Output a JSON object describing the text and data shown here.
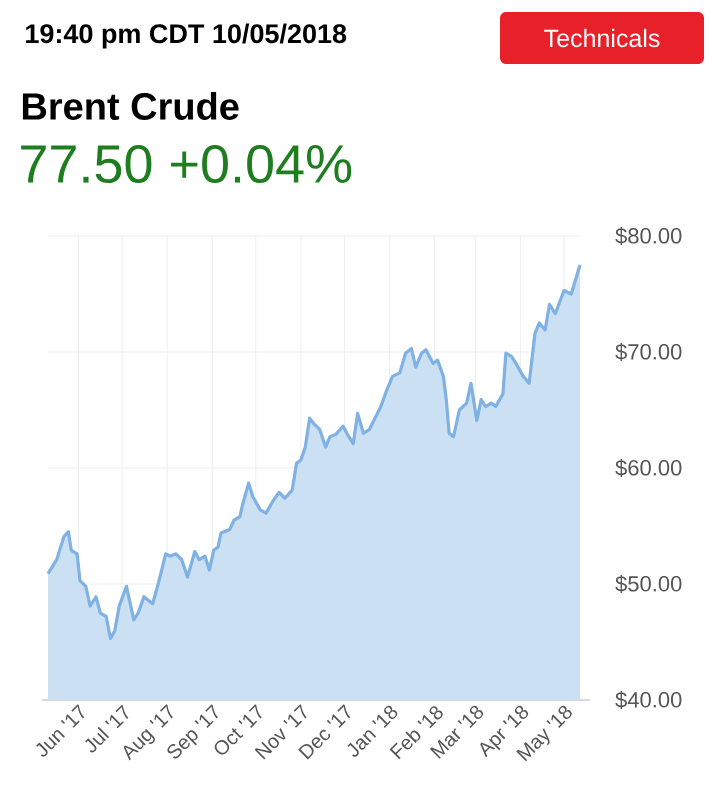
{
  "chart_data": {
    "type": "area",
    "title": "Brent Crude",
    "subtitle": "77.50 +0.04%",
    "annotations": [
      "19:40 pm CDT 10/05/2018",
      "Technicals"
    ],
    "xlim": [
      "2017-05-11",
      "2018-05-12"
    ],
    "xticks": [
      {
        "value": "2017-06-01",
        "label": "Jun '17"
      },
      {
        "value": "2017-07-01",
        "label": "Jul '17"
      },
      {
        "value": "2017-08-01",
        "label": "Aug '17"
      },
      {
        "value": "2017-09-01",
        "label": "Sep '17"
      },
      {
        "value": "2017-10-01",
        "label": "Oct '17"
      },
      {
        "value": "2017-11-01",
        "label": "Nov '17"
      },
      {
        "value": "2017-12-01",
        "label": "Dec '17"
      },
      {
        "value": "2018-01-01",
        "label": "Jan '18"
      },
      {
        "value": "2018-02-01",
        "label": "Feb '18"
      },
      {
        "value": "2018-03-01",
        "label": "Mar '18"
      },
      {
        "value": "2018-04-01",
        "label": "Apr '18"
      },
      {
        "value": "2018-05-01",
        "label": "May '18"
      }
    ],
    "ylim": [
      40,
      80
    ],
    "yticks": [
      {
        "value": 40,
        "label": "$40.00"
      },
      {
        "value": 50,
        "label": "$50.00"
      },
      {
        "value": 60,
        "label": "$60.00"
      },
      {
        "value": 70,
        "label": "$70.00"
      },
      {
        "value": 80,
        "label": "$80.00"
      }
    ],
    "grid": true,
    "series": [
      {
        "color": "#7fb1e3",
        "x": [
          "2017-05-11",
          "2017-05-17",
          "2017-05-22",
          "2017-05-25",
          "2017-05-27",
          "2017-05-31",
          "2017-06-02",
          "2017-06-06",
          "2017-06-09",
          "2017-06-13",
          "2017-06-16",
          "2017-06-20",
          "2017-06-23",
          "2017-06-26",
          "2017-06-29",
          "2017-07-04",
          "2017-07-09",
          "2017-07-12",
          "2017-07-16",
          "2017-07-19",
          "2017-07-22",
          "2017-07-26",
          "2017-07-31",
          "2017-08-03",
          "2017-08-07",
          "2017-08-11",
          "2017-08-15",
          "2017-08-20",
          "2017-08-23",
          "2017-08-27",
          "2017-08-30",
          "2017-09-02",
          "2017-09-05",
          "2017-09-07",
          "2017-09-13",
          "2017-09-16",
          "2017-09-20",
          "2017-09-22",
          "2017-09-26",
          "2017-09-29",
          "2017-10-04",
          "2017-10-08",
          "2017-10-13",
          "2017-10-17",
          "2017-10-21",
          "2017-10-26",
          "2017-10-29",
          "2017-11-01",
          "2017-11-04",
          "2017-11-07",
          "2017-11-10",
          "2017-11-14",
          "2017-11-18",
          "2017-11-21",
          "2017-11-25",
          "2017-11-30",
          "2017-12-03",
          "2017-12-07",
          "2017-12-10",
          "2017-12-14",
          "2017-12-18",
          "2017-12-26",
          "2017-12-30",
          "2018-01-03",
          "2018-01-08",
          "2018-01-12",
          "2018-01-16",
          "2018-01-19",
          "2018-01-23",
          "2018-01-26",
          "2018-01-31",
          "2018-02-03",
          "2018-02-07",
          "2018-02-09",
          "2018-02-11",
          "2018-02-14",
          "2018-02-18",
          "2018-02-23",
          "2018-02-26",
          "2018-03-02",
          "2018-03-05",
          "2018-03-08",
          "2018-03-12",
          "2018-03-15",
          "2018-03-20",
          "2018-03-22",
          "2018-03-26",
          "2018-03-29",
          "2018-04-03",
          "2018-04-07",
          "2018-04-11",
          "2018-04-14",
          "2018-04-18",
          "2018-04-21",
          "2018-04-25",
          "2018-05-01",
          "2018-05-06",
          "2018-05-12"
        ],
        "values": [
          50.9,
          52.1,
          54.1,
          54.5,
          52.9,
          52.6,
          50.3,
          49.8,
          48.1,
          48.9,
          47.5,
          47.2,
          45.3,
          46.0,
          48.1,
          49.8,
          46.9,
          47.5,
          48.9,
          48.6,
          48.3,
          50.1,
          52.6,
          52.4,
          52.6,
          52.1,
          50.6,
          52.8,
          52.1,
          52.4,
          51.2,
          52.9,
          53.2,
          54.4,
          54.7,
          55.5,
          55.8,
          56.9,
          58.7,
          57.5,
          56.4,
          56.1,
          57.2,
          57.9,
          57.4,
          58.1,
          60.4,
          60.7,
          61.8,
          64.3,
          63.8,
          63.3,
          61.8,
          62.7,
          62.9,
          63.6,
          62.9,
          62.1,
          64.7,
          63.0,
          63.3,
          65.3,
          66.7,
          67.9,
          68.2,
          69.9,
          70.3,
          68.7,
          69.9,
          70.2,
          69.0,
          69.3,
          67.9,
          65.9,
          63.0,
          62.7,
          65.0,
          65.6,
          67.3,
          64.1,
          65.9,
          65.3,
          65.6,
          65.3,
          66.4,
          69.9,
          69.6,
          69.0,
          67.9,
          67.3,
          71.6,
          72.5,
          71.9,
          74.1,
          73.3,
          75.3,
          75.0,
          77.5
        ]
      }
    ]
  }
}
